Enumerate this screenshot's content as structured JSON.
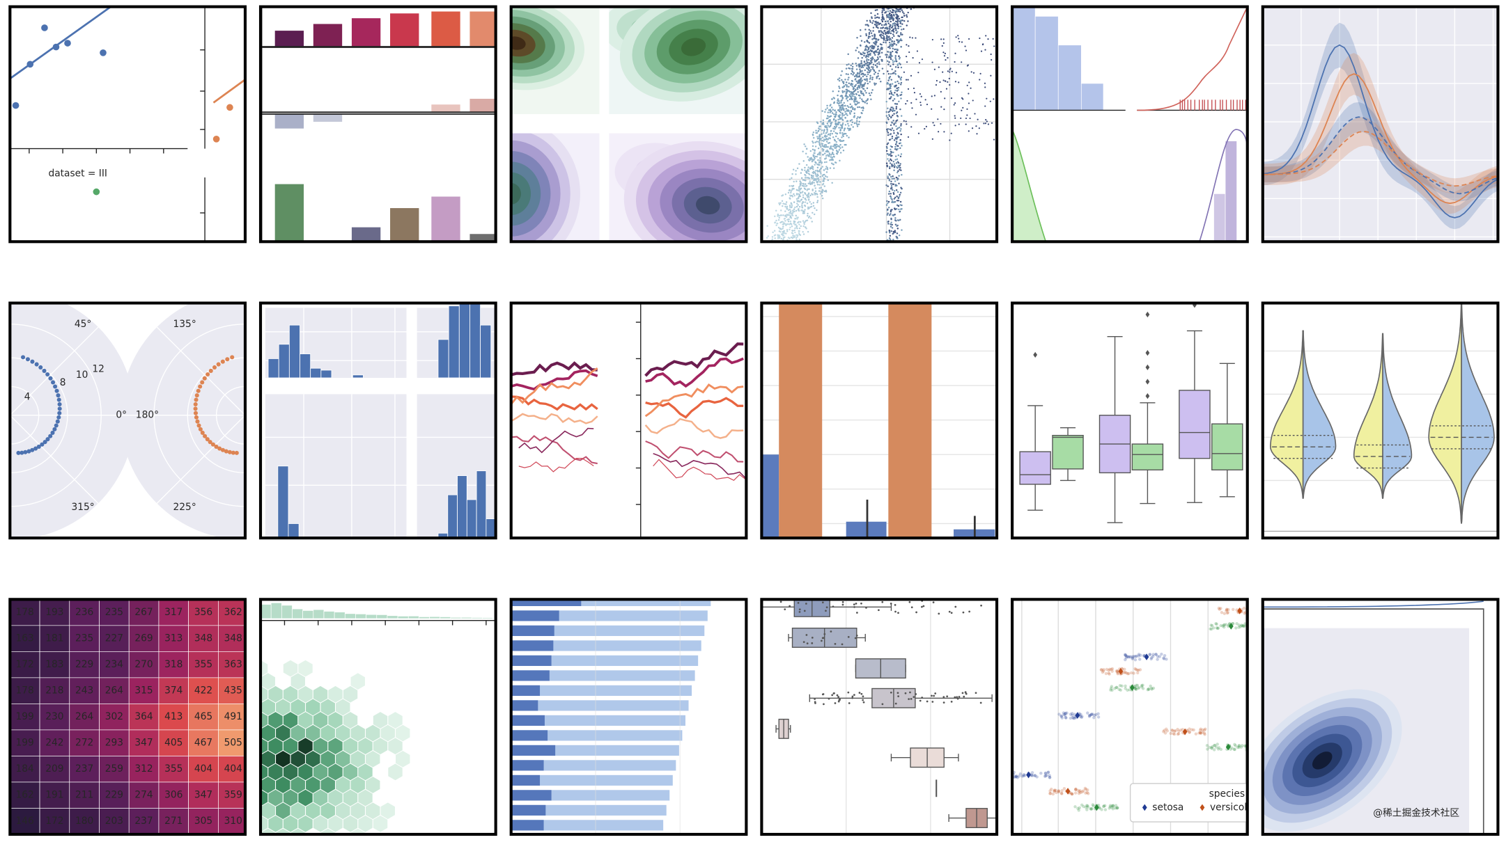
{
  "panels": {
    "lmplot": {
      "facet_label": "dataset = III"
    },
    "polar": {
      "angle_labels": [
        "45°",
        "135°",
        "0°",
        "180°",
        "315°",
        "225°"
      ],
      "radius_labels": [
        "4",
        "8",
        "10",
        "12"
      ]
    },
    "heatmap": {
      "rows": [
        [
          178,
          193,
          236,
          235,
          267,
          317,
          356,
          362
        ],
        [
          163,
          181,
          235,
          227,
          269,
          313,
          348,
          348
        ],
        [
          172,
          183,
          229,
          234,
          270,
          318,
          355,
          363
        ],
        [
          178,
          218,
          243,
          264,
          315,
          374,
          422,
          435
        ],
        [
          199,
          230,
          264,
          302,
          364,
          413,
          465,
          491
        ],
        [
          199,
          242,
          272,
          293,
          347,
          405,
          467,
          505
        ],
        [
          184,
          209,
          237,
          259,
          312,
          355,
          404,
          404
        ],
        [
          162,
          191,
          211,
          229,
          274,
          306,
          347,
          359
        ],
        [
          146,
          172,
          180,
          203,
          237,
          271,
          305,
          310
        ]
      ]
    },
    "stripplot": {
      "legend_title": "species",
      "legend_entries": [
        "setosa",
        "versicol"
      ]
    }
  },
  "watermark": "@稀土掘金技术社区"
}
